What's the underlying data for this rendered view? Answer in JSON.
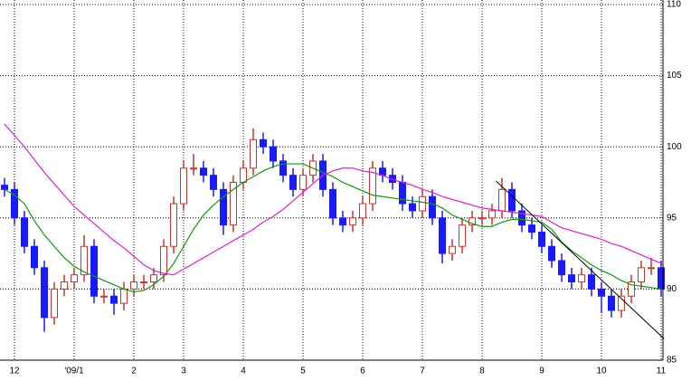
{
  "chart_data": {
    "type": "candlestick",
    "categories": [
      null,
      "12",
      null,
      null,
      null,
      null,
      null,
      "'09/1",
      null,
      null,
      null,
      null,
      null,
      "2",
      null,
      null,
      null,
      null,
      "3",
      null,
      null,
      null,
      null,
      null,
      "4",
      null,
      null,
      null,
      null,
      null,
      "5",
      null,
      null,
      null,
      null,
      null,
      "6",
      null,
      null,
      null,
      null,
      null,
      "7",
      null,
      null,
      null,
      null,
      null,
      "8",
      null,
      null,
      null,
      null,
      null,
      "9",
      null,
      null,
      null,
      null,
      null,
      "10",
      null,
      null,
      null,
      null,
      null,
      "11"
    ],
    "open": [
      97.3,
      97,
      95,
      93,
      91.5,
      88,
      90,
      90.5,
      91,
      93,
      89.5,
      89.5,
      89,
      90,
      90.5,
      90.5,
      91,
      93,
      96,
      98.5,
      98.5,
      98,
      97,
      94.5,
      97.5,
      98.5,
      100.5,
      100,
      99,
      98,
      97,
      98,
      99,
      97,
      95,
      94.5,
      95,
      96,
      98.5,
      98,
      97.5,
      96,
      95.5,
      96.5,
      95,
      92.5,
      93,
      94.5,
      95,
      95,
      95.5,
      97,
      95.5,
      94.5,
      94,
      93,
      92,
      91,
      90.5,
      91,
      90,
      89.5,
      88.5,
      89.5,
      90.5,
      91.5,
      91.5
    ],
    "high": [
      97.8,
      97.5,
      95.5,
      93.5,
      92,
      90.5,
      91,
      91.5,
      93.8,
      93.5,
      90,
      90,
      90.5,
      91,
      91,
      91.5,
      93.5,
      96.5,
      99,
      99.5,
      99,
      98.5,
      97.5,
      98,
      99,
      101.3,
      101,
      100.5,
      99.5,
      98.5,
      98.5,
      99.5,
      99.5,
      97.5,
      95.5,
      95.5,
      96.5,
      99,
      99,
      98.5,
      98,
      96.5,
      97,
      97,
      95.5,
      93.5,
      95,
      95.5,
      95.5,
      96,
      97.8,
      97.5,
      96,
      95,
      94.5,
      93.5,
      92.5,
      91.5,
      91.5,
      91.5,
      90.5,
      90,
      90,
      91,
      92,
      92.2,
      92
    ],
    "low": [
      96.5,
      94.5,
      92.5,
      91,
      87,
      87.5,
      89.5,
      90,
      90.5,
      89,
      89,
      88.2,
      88.5,
      89.5,
      90,
      90,
      90.5,
      92.5,
      95.5,
      98,
      97.5,
      96.5,
      93.8,
      94,
      97,
      98,
      99.5,
      98.5,
      97.5,
      96.5,
      96.5,
      97.5,
      96.5,
      94.5,
      94,
      94,
      94.5,
      95.5,
      97.5,
      97,
      95.5,
      95,
      95,
      94.5,
      91.8,
      92,
      92.5,
      94,
      94.5,
      94.5,
      95,
      95,
      94,
      93.5,
      92.5,
      91.5,
      90.5,
      90,
      90,
      89.5,
      88.3,
      88,
      88,
      89,
      90,
      91,
      89.5
    ],
    "close": [
      97,
      95,
      93,
      91.5,
      88,
      90,
      90.5,
      91,
      93,
      89.5,
      89.5,
      89,
      90,
      90.5,
      90.5,
      91,
      93,
      96,
      98.5,
      98.5,
      98,
      97,
      94.5,
      97.5,
      98.5,
      100.5,
      100,
      99,
      98,
      97,
      98,
      99,
      97,
      95,
      94.5,
      95,
      96,
      98.5,
      98,
      97.5,
      96,
      95.5,
      96.5,
      95,
      92.5,
      93,
      94.5,
      95,
      95,
      95.5,
      97,
      95.5,
      94.5,
      94,
      93,
      92,
      91,
      90.5,
      91,
      90,
      89.5,
      88.5,
      89.5,
      90.5,
      91.5,
      91.5,
      90
    ],
    "up_color": "#c0392b",
    "down_color": "#1a1aff",
    "series": [
      {
        "color": "#119911",
        "values": [
          97,
          96.6,
          96,
          94.8,
          93.8,
          93,
          92.2,
          91.6,
          91.2,
          90.9,
          90.6,
          90.3,
          90,
          89.8,
          89.9,
          90.3,
          90.9,
          91.8,
          93,
          94.2,
          95.2,
          95.9,
          96.5,
          97,
          97.5,
          97.9,
          98.3,
          98.6,
          98.8,
          98.8,
          98.8,
          98.5,
          98.2,
          97.9,
          97.5,
          97.2,
          96.9,
          96.6,
          96.5,
          96.4,
          96.3,
          96.2,
          96.1,
          96,
          95.7,
          95.2,
          94.9,
          94.6,
          94.4,
          94.4,
          94.7,
          94.9,
          94.9,
          94.8,
          94.7,
          94.2,
          93.3,
          92.7,
          92.2,
          91.7,
          91.3,
          91,
          90.6,
          90.3,
          90.2,
          90.1,
          90
        ]
      },
      {
        "color": "#dd22cc",
        "values": [
          101.6,
          100.8,
          100,
          99.1,
          98.2,
          97.4,
          96.6,
          95.8,
          95.2,
          94.6,
          94,
          93.4,
          92.9,
          92.3,
          91.7,
          91.3,
          91.1,
          91,
          91.4,
          91.8,
          92.2,
          92.6,
          93,
          93.4,
          93.8,
          94.2,
          94.7,
          95.1,
          95.6,
          96.2,
          96.8,
          97.4,
          98,
          98.3,
          98.5,
          98.5,
          98.3,
          98.2,
          98,
          97.7,
          97.5,
          97.3,
          97,
          96.8,
          96.5,
          96.3,
          96.1,
          95.9,
          95.7,
          95.6,
          95.5,
          95.4,
          95.3,
          95.2,
          95.1,
          94.7,
          94.3,
          94.1,
          93.9,
          93.7,
          93.5,
          93.2,
          93,
          92.7,
          92.4,
          92.1,
          91.8
        ]
      }
    ],
    "trendline": {
      "x": [
        49.4,
        66.3
      ],
      "y": [
        97.6,
        86.5
      ],
      "color": "#000000"
    },
    "ylim": [
      85,
      110
    ],
    "yticks": [
      85,
      90,
      95,
      100,
      105,
      110
    ],
    "grid": true
  }
}
